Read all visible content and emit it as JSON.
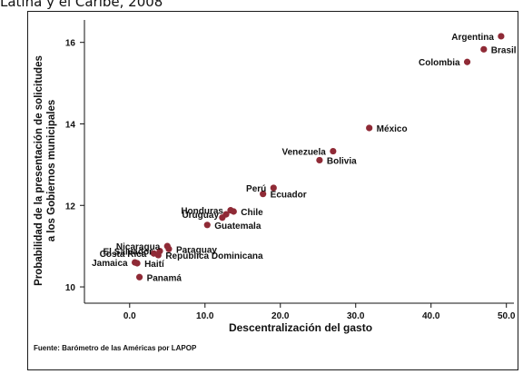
{
  "page": {
    "title_fragment": "Latina y el Caribe, 2008",
    "source_note": "Fuente: Barómetro de las Américas por LAPOP"
  },
  "chart_data": {
    "type": "scatter",
    "title": "",
    "xlabel": "Descentralización del gasto",
    "ylabel_lines": [
      "Probabilidad de la presentación de solicitudes",
      "a los Gobiernos municipales"
    ],
    "xlim": [
      -6,
      51
    ],
    "ylim": [
      9.6,
      16.55
    ],
    "x_ticks": [
      0,
      10,
      20,
      30,
      40,
      50
    ],
    "x_tick_labels": [
      "0.0",
      "10.0",
      "20.0",
      "30.0",
      "40.0",
      "50.0"
    ],
    "y_ticks": [
      10,
      12,
      14,
      16
    ],
    "y_tick_labels": [
      "10",
      "12",
      "14",
      "16"
    ],
    "grid": false,
    "marker_color": "#8f2a36",
    "points": [
      {
        "label": "Argentina",
        "x": 49.3,
        "y": 16.15,
        "anchor": "end"
      },
      {
        "label": "Brasil",
        "x": 47.0,
        "y": 15.83,
        "anchor": "start"
      },
      {
        "label": "Colombia",
        "x": 44.8,
        "y": 15.52,
        "anchor": "end"
      },
      {
        "label": "México",
        "x": 31.8,
        "y": 13.9,
        "anchor": "start"
      },
      {
        "label": "Venezuela",
        "x": 27.0,
        "y": 13.33,
        "anchor": "end"
      },
      {
        "label": "Bolivia",
        "x": 25.2,
        "y": 13.11,
        "anchor": "start"
      },
      {
        "label": "Perú",
        "x": 19.1,
        "y": 12.43,
        "anchor": "end"
      },
      {
        "label": "Ecuador",
        "x": 17.7,
        "y": 12.28,
        "anchor": "start"
      },
      {
        "label": "Honduras",
        "x": 13.4,
        "y": 11.88,
        "anchor": "end"
      },
      {
        "label": "Chile",
        "x": 13.8,
        "y": 11.85,
        "anchor": "start"
      },
      {
        "label": "Uruguay",
        "x": 12.8,
        "y": 11.78,
        "anchor": "end"
      },
      {
        "label": "",
        "x": 12.3,
        "y": 11.7,
        "anchor": "start"
      },
      {
        "label": "Guatemala",
        "x": 10.3,
        "y": 11.52,
        "anchor": "start"
      },
      {
        "label": "Nicaragua",
        "x": 5.0,
        "y": 11.0,
        "anchor": "end"
      },
      {
        "label": "Paraguay",
        "x": 5.2,
        "y": 10.93,
        "anchor": "start"
      },
      {
        "label": "El Salvador",
        "x": 4.0,
        "y": 10.88,
        "anchor": "end"
      },
      {
        "label": "Costa Rica",
        "x": 3.2,
        "y": 10.82,
        "anchor": "end"
      },
      {
        "label": "República Dominicana",
        "x": 3.8,
        "y": 10.78,
        "anchor": "start"
      },
      {
        "label": "Jamaica",
        "x": 0.7,
        "y": 10.6,
        "anchor": "end"
      },
      {
        "label": "Haití",
        "x": 1.0,
        "y": 10.58,
        "anchor": "start"
      },
      {
        "label": "Panamá",
        "x": 1.3,
        "y": 10.24,
        "anchor": "start"
      }
    ]
  }
}
